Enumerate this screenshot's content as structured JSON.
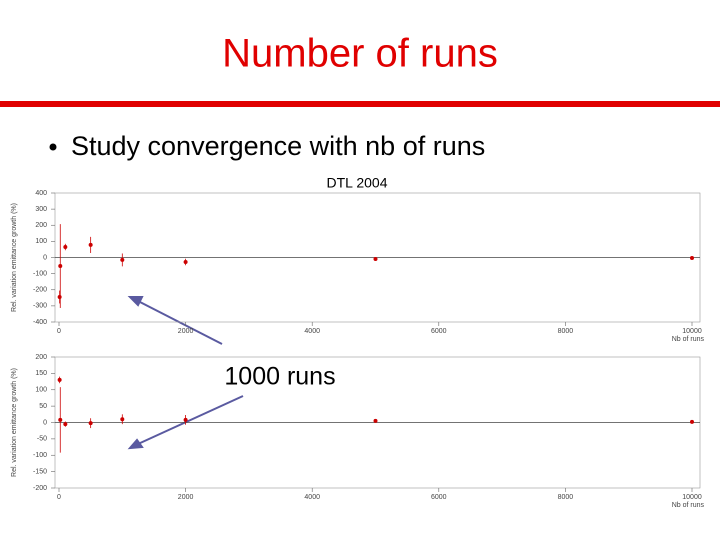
{
  "title": "Number of runs",
  "bullet": "Study convergence with nb of runs",
  "annotation": "1000 runs",
  "chart_data": [
    {
      "type": "scatter",
      "title": "DTL 2004",
      "ylabel": "Rel. variation emittance growth (%)",
      "xlabel": "Nb of runs",
      "xlim": [
        0,
        10000
      ],
      "xticks": [
        0,
        2000,
        4000,
        6000,
        8000,
        10000
      ],
      "ylim": [
        -400,
        400
      ],
      "yticks": [
        400,
        300,
        200,
        100,
        0,
        -100,
        -200,
        -300,
        -400
      ],
      "series": [
        {
          "color": "#cc0000",
          "x": [
            10,
            20,
            100,
            500,
            1000,
            2000,
            5000,
            10000
          ],
          "values": [
            -245,
            -53,
            65,
            78,
            -15,
            -28,
            -9,
            -3
          ],
          "errors": [
            40,
            260,
            20,
            50,
            40,
            20,
            10,
            8
          ]
        }
      ]
    },
    {
      "type": "scatter",
      "ylabel": "Rel. variation emittance growth (%)",
      "xlabel": "Nb of runs",
      "xlim": [
        0,
        10000
      ],
      "xticks": [
        0,
        2000,
        4000,
        6000,
        8000,
        10000
      ],
      "ylim": [
        -200,
        200
      ],
      "yticks": [
        200,
        150,
        100,
        50,
        0,
        -50,
        -100,
        -150,
        -200
      ],
      "series": [
        {
          "color": "#cc0000",
          "x": [
            10,
            20,
            100,
            500,
            1000,
            2000,
            5000,
            10000
          ],
          "values": [
            130,
            8,
            -5,
            -2,
            10,
            8,
            5,
            2
          ],
          "errors": [
            10,
            100,
            8,
            15,
            15,
            15,
            5,
            5
          ]
        }
      ]
    }
  ]
}
